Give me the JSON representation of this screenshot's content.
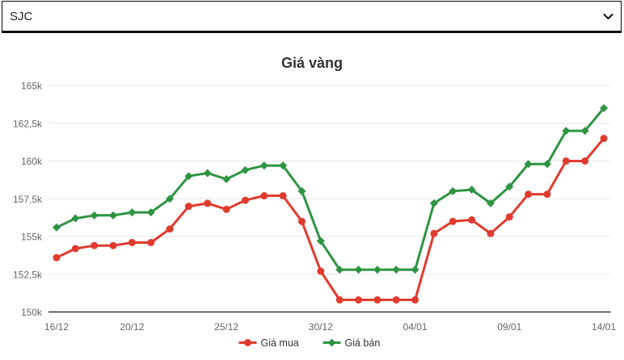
{
  "select": {
    "value": "SJC"
  },
  "chart_data": {
    "type": "line",
    "title": "Giá vàng",
    "categories": [
      "16/12",
      "17/12",
      "18/12",
      "19/12",
      "20/12",
      "21/12",
      "22/12",
      "23/12",
      "24/12",
      "25/12",
      "26/12",
      "27/12",
      "28/12",
      "29/12",
      "30/12",
      "31/12",
      "01/01",
      "02/01",
      "03/01",
      "04/01",
      "05/01",
      "06/01",
      "07/01",
      "08/01",
      "09/01",
      "10/01",
      "11/01",
      "12/01",
      "13/01",
      "14/01"
    ],
    "series": [
      {
        "id": "gia-mua",
        "name": "Giá mua",
        "color": "#e13b2f",
        "marker": "circle",
        "values": [
          153.6,
          154.2,
          154.4,
          154.4,
          154.6,
          154.6,
          155.5,
          157.0,
          157.2,
          156.8,
          157.4,
          157.7,
          157.7,
          156.0,
          152.7,
          150.8,
          150.8,
          150.8,
          150.8,
          150.8,
          155.2,
          156.0,
          156.1,
          155.2,
          156.3,
          157.8,
          157.8,
          160.0,
          160.0,
          161.5
        ]
      },
      {
        "id": "gia-ban",
        "name": "Giá bán",
        "color": "#2e9442",
        "marker": "diamond",
        "values": [
          155.6,
          156.2,
          156.4,
          156.4,
          156.6,
          156.6,
          157.5,
          159.0,
          159.2,
          158.8,
          159.4,
          159.7,
          159.7,
          158.0,
          154.7,
          152.8,
          152.8,
          152.8,
          152.8,
          152.8,
          157.2,
          158.0,
          158.1,
          157.2,
          158.3,
          159.8,
          159.8,
          162.0,
          162.0,
          163.5
        ]
      }
    ],
    "yaxis": {
      "min": 150,
      "max": 165,
      "tick_interval": 2.5,
      "tick_labels": [
        "150k",
        "152,5k",
        "155k",
        "157,5k",
        "160k",
        "162,5k",
        "165k"
      ]
    },
    "xaxis": {
      "ticks": [
        {
          "index": 0,
          "label": "16/12"
        },
        {
          "index": 4,
          "label": "20/12"
        },
        {
          "index": 9,
          "label": "25/12"
        },
        {
          "index": 14,
          "label": "30/12"
        },
        {
          "index": 19,
          "label": "04/01"
        },
        {
          "index": 24,
          "label": "09/01"
        },
        {
          "index": 29,
          "label": "14/01"
        }
      ]
    },
    "grid": true,
    "legend_position": "bottom",
    "colors": {
      "gridline": "#e6e6e6",
      "axis_line": "#333333",
      "axis_label": "#666666",
      "title": "#333333",
      "legend_text": "#333333"
    }
  }
}
